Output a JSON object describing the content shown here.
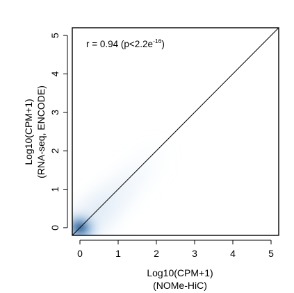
{
  "chart_data": {
    "type": "heatmap",
    "subtype": "2d-density-scatter",
    "title": "",
    "xlabel_lines": [
      "Log10(CPM+1)",
      "(NOMe-HiC)"
    ],
    "ylabel_lines": [
      "Log10(CPM+1)",
      "(RNA-seq, ENCODE)"
    ],
    "xlim": [
      -0.2,
      5.2
    ],
    "ylim": [
      -0.2,
      5.2
    ],
    "xticks": [
      0,
      1,
      2,
      3,
      4,
      5
    ],
    "yticks": [
      0,
      1,
      2,
      3,
      4,
      5
    ],
    "xtick_labels": [
      "0",
      "1",
      "2",
      "3",
      "4",
      "5"
    ],
    "ytick_labels": [
      "0",
      "1",
      "2",
      "3",
      "4",
      "5"
    ],
    "annotation": {
      "text": "r = 0.94 (p<2.2e",
      "superscript": "-16",
      "suffix": ")"
    },
    "reference_line": {
      "from": [
        -0.2,
        -0.2
      ],
      "to": [
        5.2,
        5.2
      ],
      "color": "#000000"
    },
    "density_colormap": [
      "#ffffff",
      "#cfe0f1",
      "#8cb9dd",
      "#3e83c0",
      "#0b4a8f",
      "#082a5a"
    ],
    "density_peak": {
      "x": 0.0,
      "y": 0.0
    },
    "grid": false,
    "legend": "none"
  }
}
